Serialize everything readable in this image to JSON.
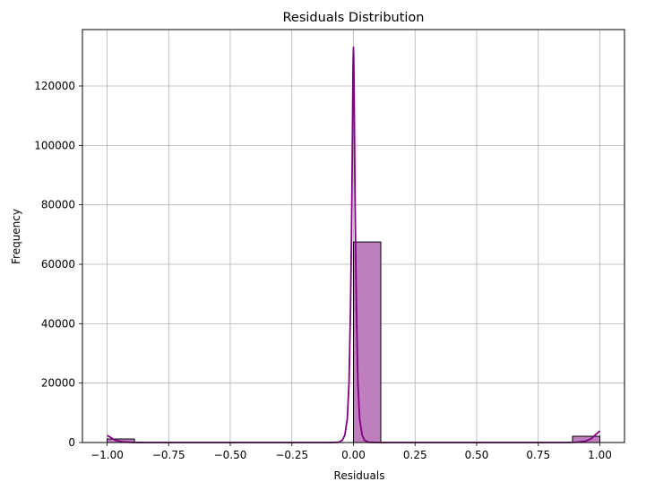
{
  "chart_data": {
    "type": "bar",
    "title": "Residuals Distribution",
    "xlabel": "Residuals",
    "ylabel": "Frequency",
    "xlim": [
      -1.1,
      1.1
    ],
    "ylim": [
      0,
      139000
    ],
    "grid": true,
    "xticks": [
      -1.0,
      -0.75,
      -0.5,
      -0.25,
      0.0,
      0.25,
      0.5,
      0.75,
      1.0
    ],
    "xtick_labels": [
      "−1.00",
      "−0.75",
      "−0.50",
      "−0.25",
      "0.00",
      "0.25",
      "0.50",
      "0.75",
      "1.00"
    ],
    "yticks": [
      0,
      20000,
      40000,
      60000,
      80000,
      100000,
      120000
    ],
    "ytick_labels": [
      "0",
      "20000",
      "40000",
      "60000",
      "80000",
      "100000",
      "120000"
    ],
    "bins": [
      {
        "x0": -1.0,
        "x1": -0.889,
        "count": 1200
      },
      {
        "x0": 0.0,
        "x1": 0.111,
        "count": 67500
      },
      {
        "x0": 0.889,
        "x1": 1.0,
        "count": 2100
      }
    ],
    "kde": [
      [
        -1.0,
        2400
      ],
      [
        -0.985,
        1700
      ],
      [
        -0.965,
        700
      ],
      [
        -0.94,
        250
      ],
      [
        -0.9,
        50
      ],
      [
        -0.85,
        0
      ],
      [
        -0.1,
        0
      ],
      [
        -0.06,
        100
      ],
      [
        -0.045,
        800
      ],
      [
        -0.035,
        2500
      ],
      [
        -0.025,
        8000
      ],
      [
        -0.018,
        20000
      ],
      [
        -0.012,
        45000
      ],
      [
        -0.008,
        70000
      ],
      [
        -0.005,
        95000
      ],
      [
        -0.003,
        115000
      ],
      [
        -0.0015,
        128000
      ],
      [
        0.0,
        133000
      ],
      [
        0.0015,
        128000
      ],
      [
        0.003,
        115000
      ],
      [
        0.005,
        95000
      ],
      [
        0.008,
        70000
      ],
      [
        0.012,
        45000
      ],
      [
        0.018,
        20000
      ],
      [
        0.025,
        8000
      ],
      [
        0.035,
        2500
      ],
      [
        0.045,
        800
      ],
      [
        0.06,
        100
      ],
      [
        0.1,
        0
      ],
      [
        0.85,
        0
      ],
      [
        0.9,
        80
      ],
      [
        0.94,
        400
      ],
      [
        0.965,
        1300
      ],
      [
        0.985,
        2800
      ],
      [
        1.0,
        3900
      ]
    ],
    "bar_color": "#BF7FBF",
    "line_color": "#800080",
    "edge_color": "#000000",
    "grid_color": "#b0b0b0"
  }
}
